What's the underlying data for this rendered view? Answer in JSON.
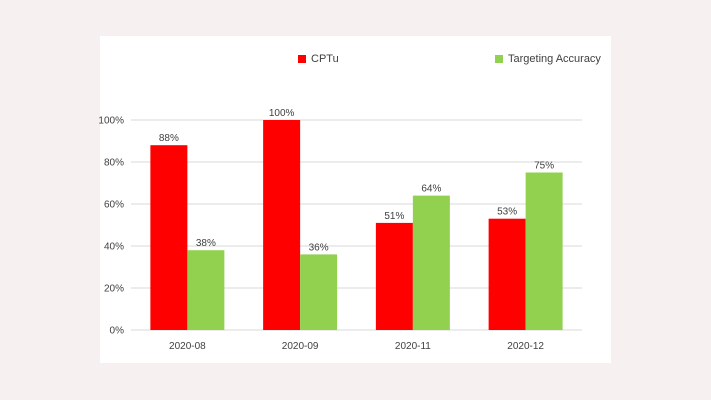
{
  "chart_data": {
    "type": "bar",
    "categories": [
      "2020-08",
      "2020-09",
      "2020-11",
      "2020-12"
    ],
    "series": [
      {
        "name": "CPTu",
        "values": [
          88,
          100,
          51,
          53
        ],
        "labels": [
          "88%",
          "100%",
          "51%",
          "53%"
        ],
        "color": "#ff0000"
      },
      {
        "name": "Targeting Accuracy",
        "values": [
          38,
          36,
          64,
          75
        ],
        "labels": [
          "38%",
          "36%",
          "64%",
          "75%"
        ],
        "color": "#92d050"
      }
    ],
    "y_ticks": [
      0,
      20,
      40,
      60,
      80,
      100
    ],
    "y_tick_labels": [
      "0%",
      "20%",
      "40%",
      "60%",
      "80%",
      "100%"
    ],
    "ylim": [
      0,
      100
    ],
    "grid": true,
    "legend_position": "top"
  },
  "colors": {
    "page_background": "#f6f0f0",
    "card_background": "#ffffff",
    "gridline": "#d9d9d9",
    "text": "#404040"
  }
}
